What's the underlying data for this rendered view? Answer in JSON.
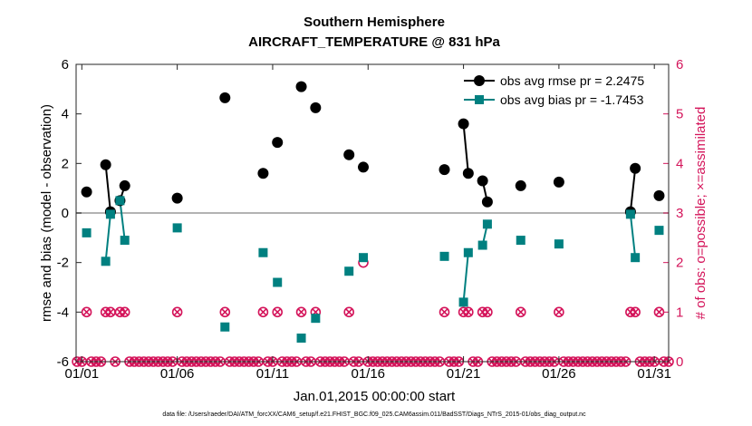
{
  "chart_data": {
    "type": "scatter",
    "title": "Southern Hemisphere",
    "subtitle": "AIRCRAFT_TEMPERATURE @ 831 hPa",
    "xlabel": "Jan.01,2015 00:00:00 start",
    "ylabel": "rmse and bias (model - observation)",
    "ylabel_right": "# of obs: o=possible; ×=assimilated",
    "xlim": [
      0.7,
      31.75
    ],
    "ylim": [
      -6,
      6
    ],
    "ylim_right": [
      0,
      6
    ],
    "x_ticks": [
      1,
      6,
      11,
      16,
      21,
      26,
      31
    ],
    "x_tick_labels": [
      "01/01",
      "01/06",
      "01/11",
      "01/16",
      "01/21",
      "01/26",
      "01/31"
    ],
    "y_ticks": [
      -6,
      -4,
      -2,
      0,
      2,
      4,
      6
    ],
    "y_tick_labels": [
      "-6",
      "-4",
      "-2",
      "0",
      "2",
      "4",
      "6"
    ],
    "y_ticks_right": [
      0,
      1,
      2,
      3,
      4,
      5,
      6
    ],
    "y_tick_labels_right": [
      "0",
      "1",
      "2",
      "3",
      "4",
      "5",
      "6"
    ],
    "legend_position": "top-right",
    "series": [
      {
        "name": "obs avg rmse pr = 2.2475",
        "color": "#000000",
        "marker": "circle",
        "points": [
          [
            1.25,
            0.85
          ],
          [
            2.25,
            1.95
          ],
          [
            2.5,
            0.05
          ],
          [
            3.0,
            0.5
          ],
          [
            3.25,
            1.1
          ],
          [
            6.0,
            0.6
          ],
          [
            8.5,
            4.65
          ],
          [
            10.5,
            1.6
          ],
          [
            11.25,
            2.85
          ],
          [
            12.5,
            5.1
          ],
          [
            13.25,
            4.25
          ],
          [
            15.0,
            2.35
          ],
          [
            15.75,
            1.85
          ],
          [
            20.0,
            1.75
          ],
          [
            21.0,
            3.6
          ],
          [
            21.25,
            1.6
          ],
          [
            22.0,
            1.3
          ],
          [
            22.25,
            0.45
          ],
          [
            24.0,
            1.1
          ],
          [
            26.0,
            1.25
          ],
          [
            29.75,
            0.05
          ],
          [
            30.0,
            1.8
          ],
          [
            31.25,
            0.7
          ]
        ],
        "segments": [
          [
            1,
            2
          ],
          [
            3,
            4
          ],
          [
            14,
            15
          ],
          [
            16,
            17
          ],
          [
            20,
            21
          ]
        ]
      },
      {
        "name": "obs avg bias pr = -1.7453",
        "color": "#008080",
        "marker": "square",
        "points": [
          [
            1.25,
            -0.8
          ],
          [
            2.25,
            -1.95
          ],
          [
            2.5,
            -0.05
          ],
          [
            3.0,
            0.5
          ],
          [
            3.25,
            -1.1
          ],
          [
            6.0,
            -0.6
          ],
          [
            8.5,
            -4.6
          ],
          [
            10.5,
            -1.6
          ],
          [
            11.25,
            -2.8
          ],
          [
            12.5,
            -5.05
          ],
          [
            13.25,
            -4.25
          ],
          [
            15.0,
            -2.35
          ],
          [
            15.75,
            -1.8
          ],
          [
            20.0,
            -1.75
          ],
          [
            21.0,
            -3.6
          ],
          [
            21.25,
            -1.6
          ],
          [
            22.0,
            -1.3
          ],
          [
            22.25,
            -0.45
          ],
          [
            24.0,
            -1.1
          ],
          [
            26.0,
            -1.25
          ],
          [
            29.75,
            -0.05
          ],
          [
            30.0,
            -1.8
          ],
          [
            31.25,
            -0.7
          ]
        ],
        "segments": [
          [
            1,
            2
          ],
          [
            3,
            4
          ],
          [
            14,
            15
          ],
          [
            16,
            17
          ],
          [
            20,
            21
          ]
        ]
      },
      {
        "name": "possible obs count",
        "color": "#d4145a",
        "axis": "right",
        "marker": "open-circle",
        "points": [
          [
            1.25,
            1
          ],
          [
            2.25,
            1
          ],
          [
            2.5,
            1
          ],
          [
            3.0,
            1
          ],
          [
            3.25,
            1
          ],
          [
            6.0,
            1
          ],
          [
            8.5,
            1
          ],
          [
            10.5,
            1
          ],
          [
            11.25,
            1
          ],
          [
            12.5,
            1
          ],
          [
            13.25,
            1
          ],
          [
            15.0,
            1
          ],
          [
            15.75,
            2
          ],
          [
            20.0,
            1
          ],
          [
            21.0,
            1
          ],
          [
            21.25,
            1
          ],
          [
            22.0,
            1
          ],
          [
            22.25,
            1
          ],
          [
            24.0,
            1
          ],
          [
            26.0,
            1
          ],
          [
            29.75,
            1
          ],
          [
            30.0,
            1
          ],
          [
            31.25,
            1
          ]
        ],
        "zero_x_from": 0.75,
        "zero_x_to": 31.75,
        "zero_x_step": 0.25
      },
      {
        "name": "assimilated obs count",
        "color": "#d4145a",
        "axis": "right",
        "marker": "cross",
        "points": [
          [
            1.25,
            1
          ],
          [
            2.25,
            1
          ],
          [
            2.5,
            1
          ],
          [
            3.0,
            1
          ],
          [
            3.25,
            1
          ],
          [
            6.0,
            1
          ],
          [
            8.5,
            1
          ],
          [
            10.5,
            1
          ],
          [
            11.25,
            1
          ],
          [
            12.5,
            1
          ],
          [
            13.25,
            1
          ],
          [
            15.0,
            1
          ],
          [
            20.0,
            1
          ],
          [
            21.0,
            1
          ],
          [
            21.25,
            1
          ],
          [
            22.0,
            1
          ],
          [
            22.25,
            1
          ],
          [
            24.0,
            1
          ],
          [
            26.0,
            1
          ],
          [
            29.75,
            1
          ],
          [
            30.0,
            1
          ],
          [
            31.25,
            1
          ]
        ]
      }
    ],
    "footnote": "data file: /Users/raeder/DAI/ATM_forcXX/CAM6_setup/f.e21.FHIST_BGC.f09_025.CAM6assim.011/BadSST/Diags_NTrS_2015-01/obs_diag_output.nc"
  }
}
